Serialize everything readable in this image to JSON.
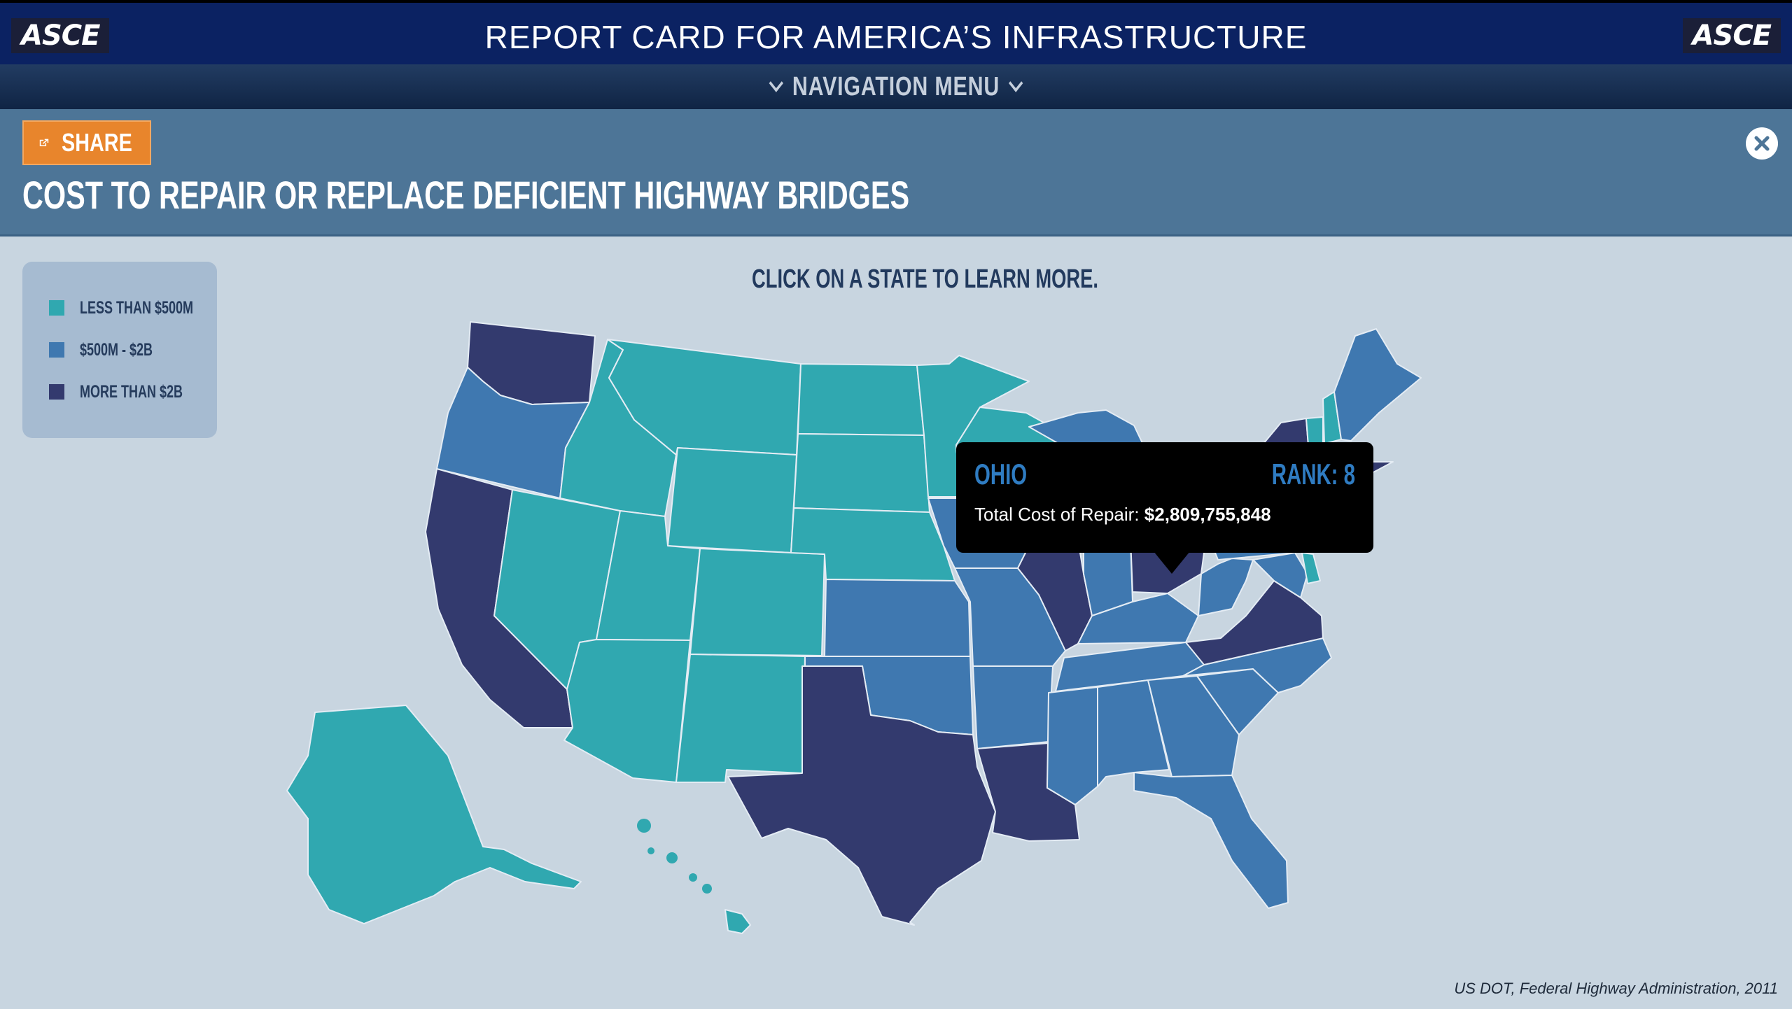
{
  "header": {
    "logo_left": "ASCE",
    "logo_right": "ASCE",
    "title": "REPORT CARD FOR AMERICA’S INFRASTRUCTURE"
  },
  "nav": {
    "label": "NAVIGATION MENU"
  },
  "panel": {
    "share_label": "SHARE",
    "page_title": "COST TO REPAIR OR REPLACE DEFICIENT HIGHWAY BRIDGES",
    "instruction": "CLICK ON A STATE TO LEARN MORE."
  },
  "legend": [
    {
      "label": "LESS THAN $500M",
      "color": "#30a8b0"
    },
    {
      "label": "$500M - $2B",
      "color": "#3f78b0"
    },
    {
      "label": "MORE THAN $2B",
      "color": "#333a6e"
    }
  ],
  "tooltip": {
    "state": "OHIO",
    "rank": "RANK: 8",
    "cost_label": "Total Cost of Repair:",
    "cost_value": "$2,809,755,848"
  },
  "source": "US DOT, Federal Highway Administration, 2011",
  "map_data": {
    "categories": {
      "low": "LESS THAN $500M",
      "mid": "$500M - $2B",
      "high": "MORE THAN $2B"
    },
    "states": [
      {
        "name": "Washington",
        "cat": "high"
      },
      {
        "name": "Oregon",
        "cat": "mid"
      },
      {
        "name": "California",
        "cat": "high"
      },
      {
        "name": "Nevada",
        "cat": "low"
      },
      {
        "name": "Idaho",
        "cat": "low"
      },
      {
        "name": "Montana",
        "cat": "low"
      },
      {
        "name": "Wyoming",
        "cat": "low"
      },
      {
        "name": "Utah",
        "cat": "low"
      },
      {
        "name": "Arizona",
        "cat": "low"
      },
      {
        "name": "Colorado",
        "cat": "low"
      },
      {
        "name": "New Mexico",
        "cat": "low"
      },
      {
        "name": "North Dakota",
        "cat": "low"
      },
      {
        "name": "South Dakota",
        "cat": "low"
      },
      {
        "name": "Nebraska",
        "cat": "low"
      },
      {
        "name": "Kansas",
        "cat": "mid"
      },
      {
        "name": "Oklahoma",
        "cat": "mid"
      },
      {
        "name": "Texas",
        "cat": "high"
      },
      {
        "name": "Minnesota",
        "cat": "low"
      },
      {
        "name": "Iowa",
        "cat": "mid"
      },
      {
        "name": "Missouri",
        "cat": "mid"
      },
      {
        "name": "Arkansas",
        "cat": "mid"
      },
      {
        "name": "Louisiana",
        "cat": "high"
      },
      {
        "name": "Wisconsin",
        "cat": "low"
      },
      {
        "name": "Illinois",
        "cat": "high"
      },
      {
        "name": "Michigan",
        "cat": "mid"
      },
      {
        "name": "Indiana",
        "cat": "mid"
      },
      {
        "name": "Ohio",
        "cat": "high"
      },
      {
        "name": "Kentucky",
        "cat": "mid"
      },
      {
        "name": "Tennessee",
        "cat": "mid"
      },
      {
        "name": "Mississippi",
        "cat": "mid"
      },
      {
        "name": "Alabama",
        "cat": "mid"
      },
      {
        "name": "Georgia",
        "cat": "mid"
      },
      {
        "name": "Florida",
        "cat": "mid"
      },
      {
        "name": "South Carolina",
        "cat": "mid"
      },
      {
        "name": "North Carolina",
        "cat": "mid"
      },
      {
        "name": "Virginia",
        "cat": "high"
      },
      {
        "name": "West Virginia",
        "cat": "mid"
      },
      {
        "name": "Pennsylvania",
        "cat": "mid"
      },
      {
        "name": "New York",
        "cat": "high"
      },
      {
        "name": "Vermont",
        "cat": "low"
      },
      {
        "name": "New Hampshire",
        "cat": "low"
      },
      {
        "name": "Maine",
        "cat": "mid"
      },
      {
        "name": "Massachusetts",
        "cat": "high"
      },
      {
        "name": "Maryland",
        "cat": "mid"
      },
      {
        "name": "Delaware",
        "cat": "low"
      },
      {
        "name": "Alaska",
        "cat": "low"
      },
      {
        "name": "Hawaii",
        "cat": "low"
      }
    ]
  }
}
